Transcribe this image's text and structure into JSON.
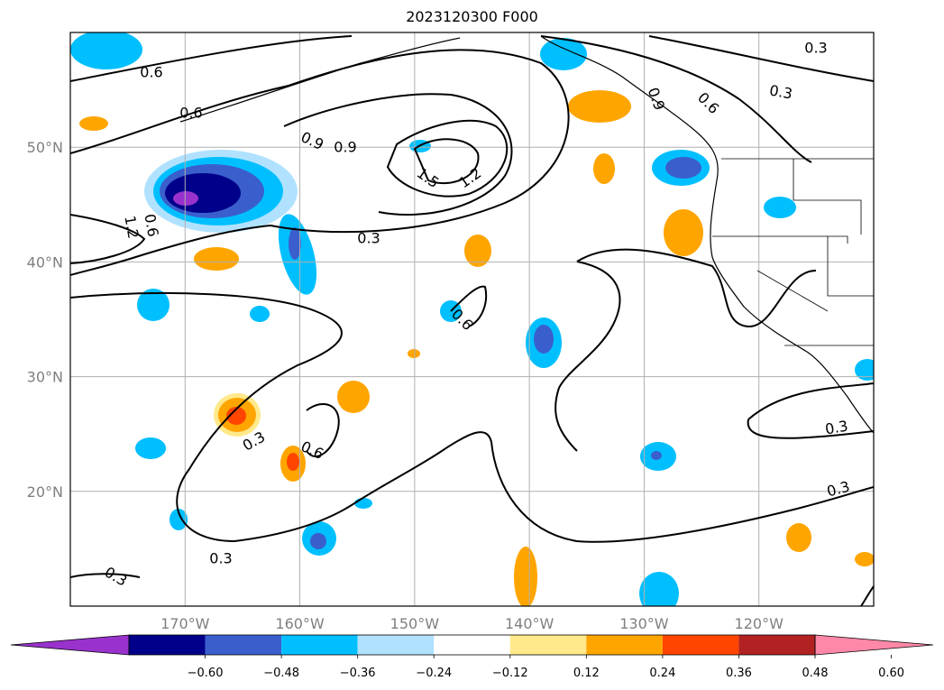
{
  "title": "2023120300 F000",
  "map": {
    "lon_range": [
      -180,
      -110
    ],
    "lat_range": [
      10,
      60
    ],
    "grid": true,
    "lon_ticks": [
      {
        "value": -170,
        "label": "170°W"
      },
      {
        "value": -160,
        "label": "160°W"
      },
      {
        "value": -150,
        "label": "150°W"
      },
      {
        "value": -140,
        "label": "140°W"
      },
      {
        "value": -130,
        "label": "130°W"
      },
      {
        "value": -120,
        "label": "120°W"
      }
    ],
    "lat_ticks": [
      {
        "value": 20,
        "label": "20°N"
      },
      {
        "value": 30,
        "label": "30°N"
      },
      {
        "value": 40,
        "label": "40°N"
      },
      {
        "value": 50,
        "label": "50°N"
      }
    ],
    "contour_labels": [
      "0.6",
      "0.6",
      "0.9",
      "0.9",
      "1.5",
      "1.2",
      "1.2",
      "0.6",
      "0.3",
      "0.3",
      "0.3",
      "0.6",
      "0.9",
      "0.6",
      "0.3",
      "0.6",
      "0.3",
      "0.3",
      "0.3",
      "0.3"
    ]
  },
  "colorbar": {
    "ticks": [
      "−0.60",
      "−0.48",
      "−0.36",
      "−0.24",
      "−0.12",
      "0.12",
      "0.24",
      "0.36",
      "0.48",
      "0.60"
    ],
    "colors": [
      "#9932cc",
      "#00008b",
      "#3a5fcd",
      "#00bfff",
      "#b0e2ff",
      "#ffffff",
      "#ffe98a",
      "#ffa500",
      "#ff4500",
      "#b22222",
      "#ff88a8"
    ],
    "extend": "both"
  }
}
